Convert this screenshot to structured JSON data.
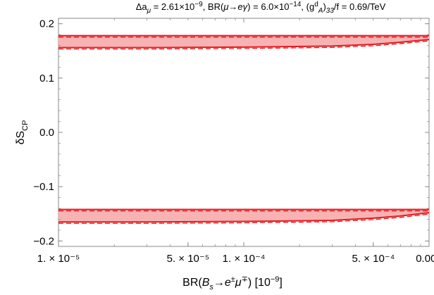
{
  "chart_data": {
    "type": "area",
    "title": "Δaμ = 2.61×10⁻⁹, BR(μ→eγ) = 6.0×10⁻¹⁴, (gᴬᵈ)₃₃/f = 0.69/TeV",
    "xlabel": "BR(Bs→e±μ∓) [10⁻⁹]",
    "ylabel": "δSCP",
    "x_scale": "log",
    "xlim": [
      1e-05,
      0.001
    ],
    "ylim": [
      -0.21,
      0.21
    ],
    "x_ticks": [
      {
        "value": 1e-05,
        "label": "1. × 10⁻⁵"
      },
      {
        "value": 5e-05,
        "label": "5. × 10⁻⁵"
      },
      {
        "value": 0.0001,
        "label": "1. × 10⁻⁴"
      },
      {
        "value": 0.0005,
        "label": "5. × 10⁻⁴"
      },
      {
        "value": 0.001,
        "label": "0.001"
      }
    ],
    "y_ticks": [
      {
        "value": 0.2,
        "label": "0.2"
      },
      {
        "value": 0.1,
        "label": "0.1"
      },
      {
        "value": 0.0,
        "label": "0.0"
      },
      {
        "value": -0.1,
        "label": "−0.1"
      },
      {
        "value": -0.2,
        "label": "−0.2"
      }
    ],
    "grid": false,
    "series": [
      {
        "band": "upper",
        "x": [
          1e-05,
          3e-05,
          0.0001,
          0.0003,
          0.0005,
          0.0007,
          0.001
        ],
        "y_high": [
          0.178,
          0.178,
          0.178,
          0.178,
          0.178,
          0.178,
          0.178
        ],
        "y_low": [
          0.156,
          0.156,
          0.157,
          0.159,
          0.162,
          0.166,
          0.171
        ]
      },
      {
        "band": "lower",
        "x": [
          1e-05,
          3e-05,
          0.0001,
          0.0003,
          0.0005,
          0.0007,
          0.001
        ],
        "y_high": [
          -0.142,
          -0.142,
          -0.142,
          -0.142,
          -0.142,
          -0.142,
          -0.142
        ],
        "y_low": [
          -0.165,
          -0.165,
          -0.164,
          -0.162,
          -0.158,
          -0.154,
          -0.148
        ]
      }
    ],
    "colors": {
      "fill": "#f7b3b3",
      "line": "#e8191f"
    }
  }
}
